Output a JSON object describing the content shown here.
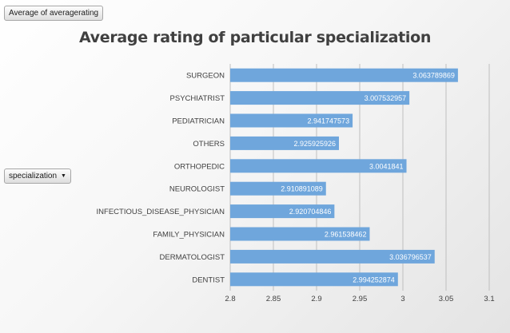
{
  "pivot": {
    "value_field": "Average of averagerating",
    "axis_field": "specialization",
    "dropdown_icon": "triangle-down-icon"
  },
  "chart_data": {
    "type": "bar",
    "orientation": "horizontal",
    "title": "Average rating of particular specialization",
    "categories": [
      "SURGEON",
      "PSYCHIATRIST",
      "PEDIATRICIAN",
      "OTHERS",
      "ORTHOPEDIC",
      "NEUROLOGIST",
      "INFECTIOUS_DISEASE_PHYSICIAN",
      "FAMILY_PHYSICIAN",
      "DERMATOLOGIST",
      "DENTIST"
    ],
    "values": [
      3.063789869,
      3.007532957,
      2.941747573,
      2.925925926,
      3.0041841,
      2.910891089,
      2.920704846,
      2.961538462,
      3.036796537,
      2.994252874
    ],
    "data_labels": [
      "3.063789869",
      "3.007532957",
      "2.941747573",
      "2.925925926",
      "3.0041841",
      "2.910891089",
      "2.920704846",
      "2.961538462",
      "3.036796537",
      "2.994252874"
    ],
    "x_ticks": [
      "2.8",
      "2.85",
      "2.9",
      "2.95",
      "3",
      "3.05",
      "3.1"
    ],
    "xlim": [
      2.8,
      3.1
    ],
    "grid": true,
    "legend": "none",
    "bar_color": "#6fa6dc"
  }
}
